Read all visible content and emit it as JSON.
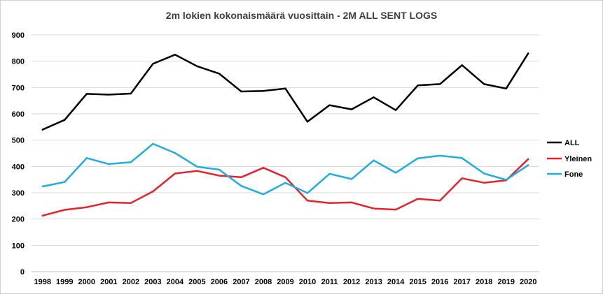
{
  "chart_data": {
    "type": "line",
    "title": "2m lokien kokonaismäärä vuosittain - 2M ALL SENT LOGS",
    "xlabel": "",
    "ylabel": "",
    "categories": [
      "1998",
      "1999",
      "2000",
      "2001",
      "2002",
      "2003",
      "2004",
      "2005",
      "2006",
      "2007",
      "2008",
      "2009",
      "2010",
      "2011",
      "2012",
      "2013",
      "2014",
      "2015",
      "2016",
      "2017",
      "2018",
      "2019",
      "2020"
    ],
    "ylim": [
      0,
      900
    ],
    "yticks": [
      0,
      100,
      200,
      300,
      400,
      500,
      600,
      700,
      800,
      900
    ],
    "grid": true,
    "legend_position": "right",
    "series": [
      {
        "name": "ALL",
        "color": "#000000",
        "values": [
          540,
          577,
          676,
          673,
          677,
          790,
          825,
          781,
          753,
          685,
          687,
          696,
          570,
          633,
          617,
          663,
          614,
          708,
          713,
          785,
          713,
          696,
          830
        ]
      },
      {
        "name": "Yleinen",
        "color": "#e8222a",
        "values": [
          213,
          235,
          245,
          263,
          261,
          305,
          373,
          383,
          365,
          359,
          395,
          359,
          270,
          261,
          263,
          240,
          236,
          277,
          270,
          355,
          338,
          347,
          428
        ]
      },
      {
        "name": "Fone",
        "color": "#1eaee0",
        "values": [
          324,
          341,
          432,
          409,
          416,
          486,
          451,
          399,
          388,
          326,
          294,
          338,
          299,
          372,
          352,
          423,
          376,
          431,
          441,
          432,
          373,
          349,
          405
        ]
      }
    ]
  }
}
